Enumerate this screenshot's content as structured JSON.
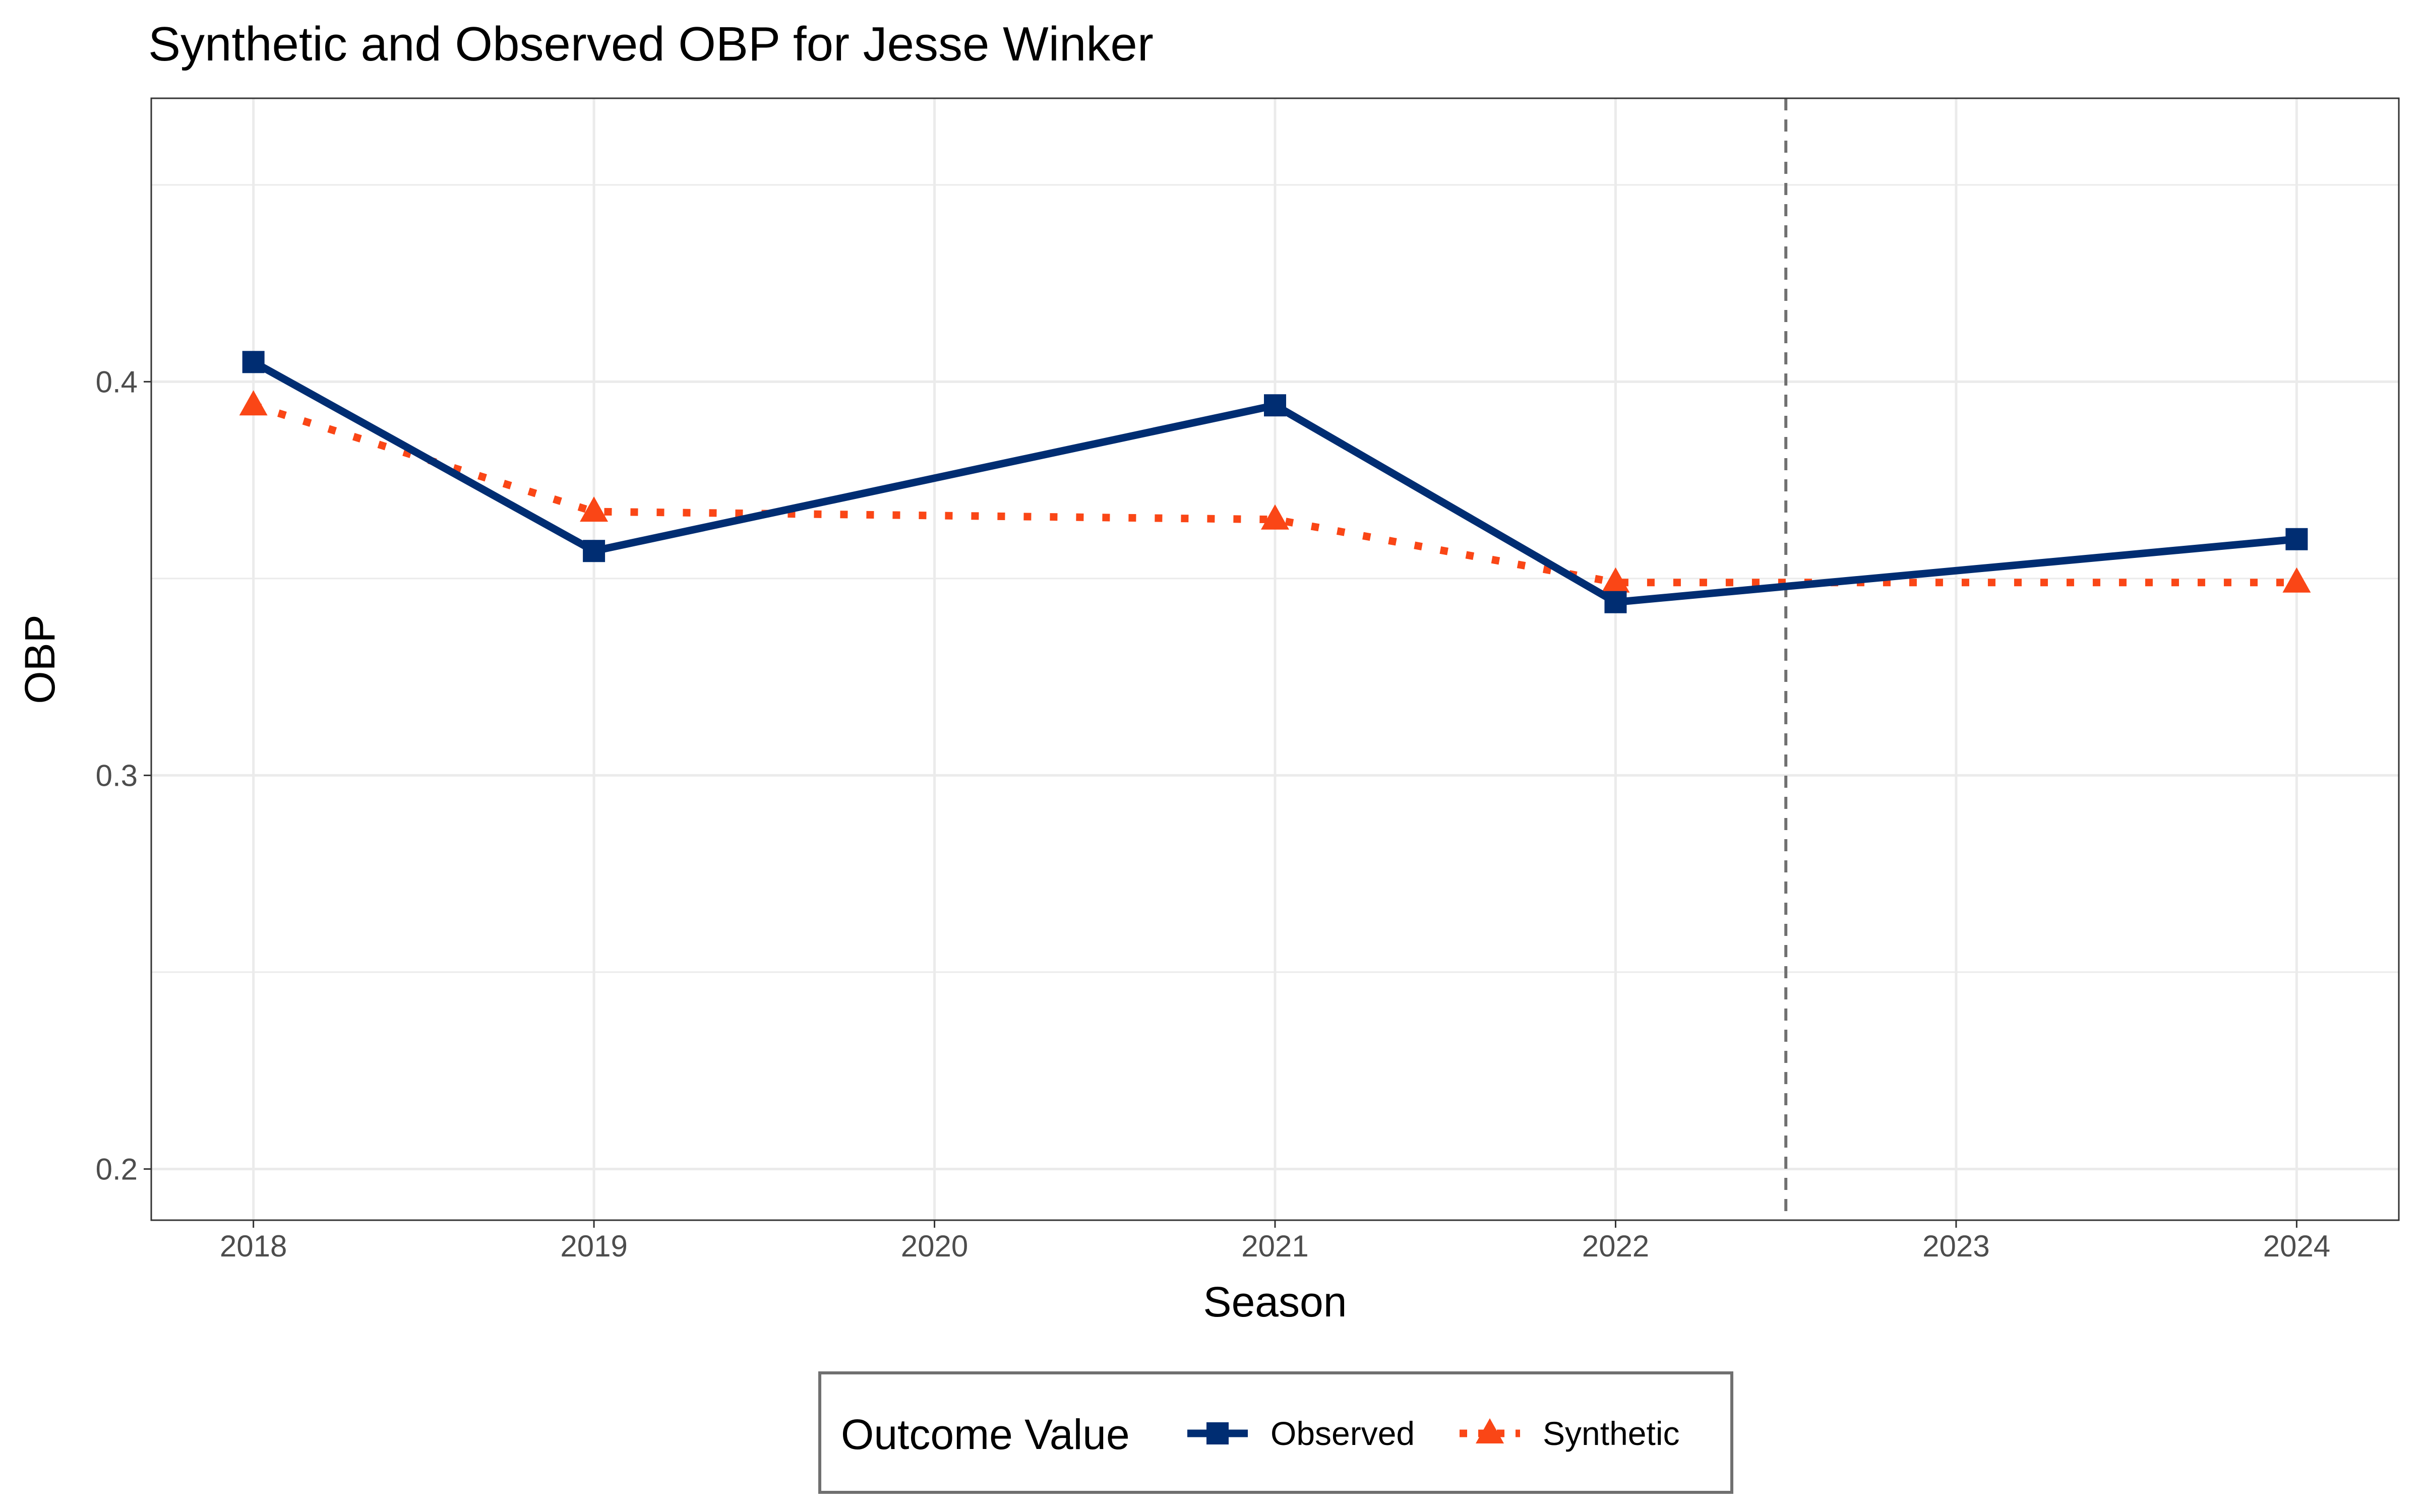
{
  "chart_data": {
    "type": "line",
    "title": "Synthetic and Observed OBP for Jesse Winker",
    "xlabel": "Season",
    "ylabel": "OBP",
    "x": [
      2018,
      2019,
      2020,
      2021,
      2022,
      2023,
      2024
    ],
    "x_ticks": [
      "2018",
      "2019",
      "2020",
      "2021",
      "2022",
      "2023",
      "2024"
    ],
    "y_ticks": [
      "0.2",
      "0.3",
      "0.4"
    ],
    "xlim": [
      2017.7,
      2024.3
    ],
    "ylim": [
      0.187,
      0.472
    ],
    "grid": true,
    "treatment_line_x": 2022.5,
    "legend": {
      "title": "Outcome Value",
      "position": "bottom"
    },
    "series": [
      {
        "name": "Observed",
        "color": "#002D72",
        "line_style": "solid",
        "marker": "square",
        "x": [
          2018,
          2019,
          2021,
          2022,
          2024
        ],
        "values": [
          0.405,
          0.357,
          0.394,
          0.344,
          0.36
        ]
      },
      {
        "name": "Synthetic",
        "color": "#FA4616",
        "line_style": "dotted",
        "marker": "triangle",
        "x": [
          2018,
          2019,
          2021,
          2022,
          2024
        ],
        "values": [
          0.394,
          0.367,
          0.365,
          0.349,
          0.349
        ]
      }
    ]
  }
}
